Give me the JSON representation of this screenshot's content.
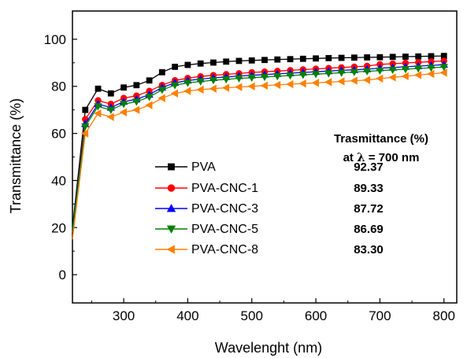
{
  "chart_data": {
    "type": "line",
    "xlabel": "Wavelenght (nm)",
    "ylabel": "Transmittance (%)",
    "xlim": [
      220,
      820
    ],
    "ylim": [
      -12,
      112
    ],
    "xticks": [
      300,
      400,
      500,
      600,
      700,
      800
    ],
    "yticks": [
      0,
      20,
      40,
      60,
      80,
      100
    ],
    "legend_position": "lower-center",
    "annotation": {
      "header_line1": "Trasmittance (%)",
      "header_line2_prefix": "at ",
      "header_lambda": "λ",
      "header_line2_suffix": " = 700 nm"
    },
    "series": [
      {
        "name": "PVA",
        "value_at_700": "92.37",
        "color": "#000000",
        "marker": "square",
        "x": [
          220,
          240,
          260,
          280,
          300,
          320,
          340,
          360,
          380,
          400,
          420,
          440,
          460,
          480,
          500,
          520,
          540,
          560,
          580,
          600,
          620,
          640,
          660,
          680,
          700,
          720,
          740,
          760,
          780,
          800
        ],
        "y": [
          20,
          70,
          79,
          77,
          79.5,
          80.5,
          82.5,
          86,
          88.3,
          89.1,
          89.7,
          90.1,
          90.5,
          90.8,
          91.0,
          91.2,
          91.4,
          91.55,
          91.7,
          91.85,
          92.0,
          92.1,
          92.2,
          92.3,
          92.37,
          92.5,
          92.6,
          92.7,
          92.8,
          92.9
        ]
      },
      {
        "name": "PVA-CNC-1",
        "value_at_700": "89.33",
        "color": "#ff0000",
        "marker": "circle",
        "x": [
          220,
          240,
          260,
          280,
          300,
          320,
          340,
          360,
          380,
          400,
          420,
          440,
          460,
          480,
          500,
          520,
          540,
          560,
          580,
          600,
          620,
          640,
          660,
          680,
          700,
          720,
          740,
          760,
          780,
          800
        ],
        "y": [
          18,
          66,
          74,
          72.5,
          75,
          76,
          78,
          80.5,
          82.5,
          83.5,
          84.2,
          84.7,
          85.1,
          85.5,
          85.9,
          86.2,
          86.5,
          86.8,
          87.1,
          87.4,
          87.7,
          88.0,
          88.3,
          88.6,
          89.33,
          89.6,
          89.9,
          90.2,
          90.5,
          90.8
        ]
      },
      {
        "name": "PVA-CNC-3",
        "value_at_700": "87.72",
        "color": "#0000ff",
        "marker": "triangle-up",
        "x": [
          220,
          240,
          260,
          280,
          300,
          320,
          340,
          360,
          380,
          400,
          420,
          440,
          460,
          480,
          500,
          520,
          540,
          560,
          580,
          600,
          620,
          640,
          660,
          680,
          700,
          720,
          740,
          760,
          780,
          800
        ],
        "y": [
          19,
          64,
          72.5,
          71,
          73.5,
          74.5,
          76.5,
          79.5,
          81.5,
          82.5,
          83.1,
          83.6,
          84.0,
          84.4,
          84.7,
          85.0,
          85.3,
          85.6,
          85.9,
          86.2,
          86.5,
          86.8,
          87.0,
          87.3,
          87.72,
          88.0,
          88.3,
          88.6,
          88.9,
          89.2
        ]
      },
      {
        "name": "PVA-CNC-5",
        "value_at_700": "86.69",
        "color": "#008000",
        "marker": "triangle-down",
        "x": [
          220,
          240,
          260,
          280,
          300,
          320,
          340,
          360,
          380,
          400,
          420,
          440,
          460,
          480,
          500,
          520,
          540,
          560,
          580,
          600,
          620,
          640,
          660,
          680,
          700,
          720,
          740,
          760,
          780,
          800
        ],
        "y": [
          18.5,
          63,
          71.5,
          70,
          72.5,
          73.5,
          75.5,
          78.5,
          80.5,
          81.5,
          82.1,
          82.6,
          83.0,
          83.4,
          83.7,
          84.0,
          84.3,
          84.6,
          84.9,
          85.2,
          85.5,
          85.8,
          86.1,
          86.4,
          86.69,
          87.0,
          87.3,
          87.6,
          87.9,
          88.2
        ]
      },
      {
        "name": "PVA-CNC-8",
        "value_at_700": "83.30",
        "color": "#ff8000",
        "marker": "triangle-left",
        "x": [
          220,
          240,
          260,
          280,
          300,
          320,
          340,
          360,
          380,
          400,
          420,
          440,
          460,
          480,
          500,
          520,
          540,
          560,
          580,
          600,
          620,
          640,
          660,
          680,
          700,
          720,
          740,
          760,
          780,
          800
        ],
        "y": [
          15,
          60,
          68.5,
          67,
          69,
          70,
          72,
          75,
          77,
          78,
          78.6,
          79.0,
          79.4,
          79.7,
          80.0,
          80.3,
          80.6,
          80.9,
          81.2,
          81.5,
          81.8,
          82.1,
          82.4,
          82.7,
          83.3,
          83.8,
          84.3,
          84.8,
          85.3,
          85.8
        ]
      }
    ]
  }
}
